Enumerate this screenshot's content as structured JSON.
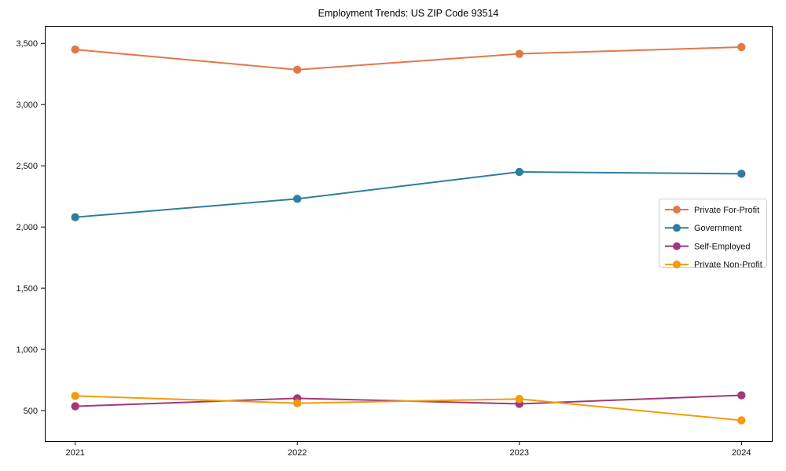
{
  "chart_data": {
    "type": "line",
    "title": "Employment Trends: US ZIP Code 93514",
    "xlabel": "",
    "ylabel": "",
    "x_categories": [
      "2021",
      "2022",
      "2023",
      "2024"
    ],
    "series": [
      {
        "name": "Private For-Profit",
        "color": "#e2784a",
        "values": [
          3450,
          3285,
          3415,
          3470
        ]
      },
      {
        "name": "Government",
        "color": "#2e7e9f",
        "values": [
          2080,
          2230,
          2450,
          2435
        ]
      },
      {
        "name": "Self-Employed",
        "color": "#a1387a",
        "values": [
          535,
          600,
          555,
          625
        ]
      },
      {
        "name": "Private Non-Profit",
        "color": "#f09c0c",
        "values": [
          620,
          560,
          595,
          420
        ]
      }
    ],
    "y_ticks": [
      500,
      1000,
      1500,
      2000,
      2500,
      3000,
      3500
    ],
    "y_tick_labels": [
      "500",
      "1,000",
      "1,500",
      "2,000",
      "2,500",
      "3,000",
      "3,500"
    ],
    "ylim": [
      250,
      3643
    ],
    "grid": false,
    "marker": "circle",
    "legend": {
      "position": "center-right",
      "border_color": "#cccccc",
      "background": "#ffffff"
    },
    "text_color": "#111111",
    "spine_color": "#000000"
  }
}
